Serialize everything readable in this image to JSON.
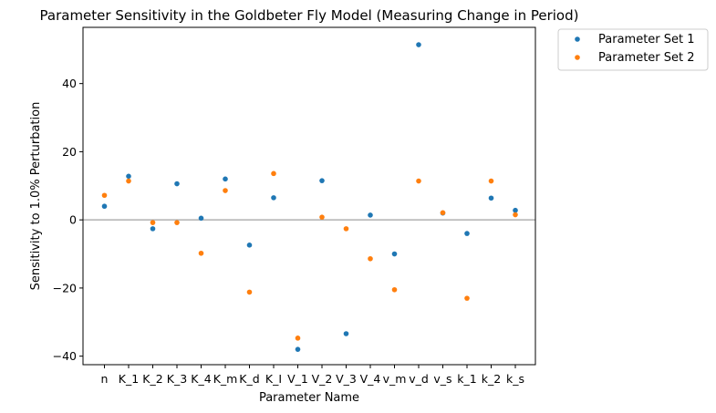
{
  "chart_data": {
    "type": "scatter",
    "title": "Parameter Sensitivity in the Goldbeter Fly Model (Measuring Change in Period)",
    "xlabel": "Parameter Name",
    "ylabel": "Sensitivity to 1.0% Perturbation",
    "categories": [
      "n",
      "K_1",
      "K_2",
      "K_3",
      "K_4",
      "K_m",
      "K_d",
      "K_I",
      "V_1",
      "V_2",
      "V_3",
      "V_4",
      "v_m",
      "v_d",
      "v_s",
      "k_1",
      "k_2",
      "k_s"
    ],
    "ylim": [
      -42.5,
      56.5
    ],
    "yticks": [
      -40,
      -20,
      0,
      20,
      40
    ],
    "ytick_labels": [
      "−40",
      "−20",
      "0",
      "20",
      "40"
    ],
    "reference_line_y": 0,
    "grid": false,
    "legend_position": "outside-top-right",
    "series": [
      {
        "name": "Parameter Set 1",
        "color": "#1f77b4",
        "values": [
          4.0,
          12.8,
          -2.6,
          10.6,
          0.5,
          12.0,
          -7.4,
          6.5,
          -38.0,
          11.5,
          -33.4,
          1.4,
          -10.0,
          51.4,
          2.0,
          -4.0,
          6.4,
          2.8
        ]
      },
      {
        "name": "Parameter Set 2",
        "color": "#ff7f0e",
        "values": [
          7.2,
          11.4,
          -0.8,
          -0.8,
          -9.8,
          8.6,
          -21.2,
          13.6,
          -34.7,
          0.8,
          -2.6,
          -11.4,
          -20.5,
          11.4,
          2.1,
          -23.0,
          11.4,
          1.5
        ]
      }
    ]
  }
}
